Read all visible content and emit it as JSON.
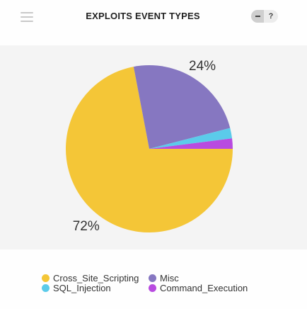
{
  "widget": {
    "title": "EXPLOITS EVENT TYPES",
    "help_label": "?"
  },
  "chart_data": {
    "type": "pie",
    "series": [
      {
        "name": "Cross_Site_Scripting",
        "value": 72,
        "color": "#f4c637",
        "label": "72%"
      },
      {
        "name": "Misc",
        "value": 24,
        "color": "#8677c1",
        "label": "24%"
      },
      {
        "name": "SQL_Injection",
        "value": 2,
        "color": "#5bcbea",
        "label": ""
      },
      {
        "name": "Command_Execution",
        "value": 2,
        "color": "#b84be0",
        "label": ""
      }
    ],
    "legend_position": "bottom"
  }
}
